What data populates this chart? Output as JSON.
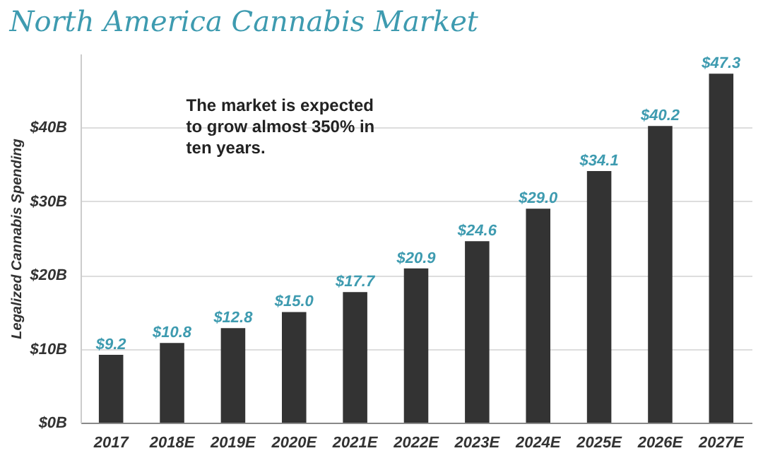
{
  "chart_data": {
    "type": "bar",
    "title": "North America Cannabis Market",
    "ylabel": "Legalized Cannabis Spending",
    "categories": [
      "2017",
      "2018E",
      "2019E",
      "2020E",
      "2021E",
      "2022E",
      "2023E",
      "2024E",
      "2025E",
      "2026E",
      "2027E"
    ],
    "values": [
      9.2,
      10.8,
      12.8,
      15.0,
      17.7,
      20.9,
      24.6,
      29.0,
      34.1,
      40.2,
      47.3
    ],
    "value_labels": [
      "$9.2",
      "$10.8",
      "$12.8",
      "$15.0",
      "$17.7",
      "$20.9",
      "$24.6",
      "$29.0",
      "$34.1",
      "$40.2",
      "$47.3"
    ],
    "color": "#333333",
    "yticks": [
      {
        "value": 0,
        "label": "$0B"
      },
      {
        "value": 10,
        "label": "$10B"
      },
      {
        "value": 20,
        "label": "$20B"
      },
      {
        "value": 30,
        "label": "$30B"
      },
      {
        "value": 40,
        "label": "$40B"
      }
    ],
    "ylim": [
      0,
      50
    ],
    "grid": "y",
    "annotations": [
      "The market is expected to grow almost 350% in ten years."
    ]
  }
}
